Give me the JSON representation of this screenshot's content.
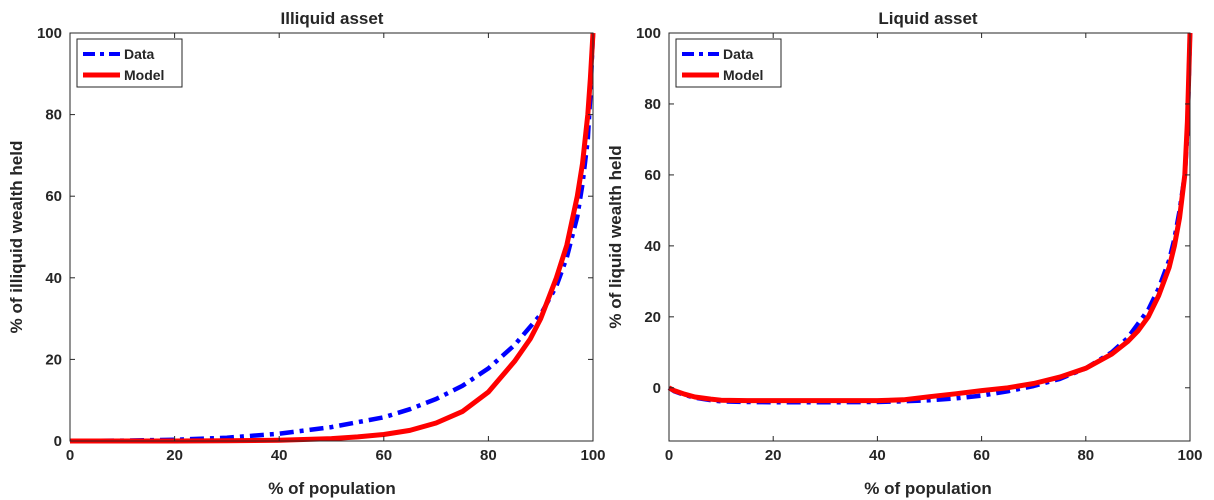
{
  "chart_data": [
    {
      "type": "line",
      "title": "Illiquid asset",
      "xlabel": "% of population",
      "ylabel": "% of illiquid wealth held",
      "xlim": [
        0,
        100
      ],
      "ylim": [
        0,
        100
      ],
      "xticks": [
        "0",
        "20",
        "40",
        "60",
        "80",
        "100"
      ],
      "yticks": [
        "0",
        "20",
        "40",
        "60",
        "80",
        "100"
      ],
      "legend_position": "top-left",
      "series": [
        {
          "name": "Data",
          "color": "#0000ff",
          "style": "dash-dot",
          "x": [
            0,
            10,
            20,
            30,
            40,
            50,
            60,
            65,
            70,
            75,
            80,
            85,
            90,
            93,
            95,
            97,
            98,
            99,
            99.5,
            100
          ],
          "y": [
            0,
            0.1,
            0.3,
            0.8,
            1.8,
            3.4,
            5.8,
            7.8,
            10.3,
            13.5,
            17.8,
            23.5,
            31,
            38,
            45,
            55,
            63,
            74,
            85,
            100
          ]
        },
        {
          "name": "Model",
          "color": "#ff0000",
          "style": "solid",
          "x": [
            0,
            10,
            20,
            30,
            40,
            50,
            55,
            60,
            65,
            70,
            75,
            80,
            85,
            88,
            90,
            93,
            95,
            97,
            98,
            99,
            99.5,
            100
          ],
          "y": [
            0,
            0,
            0,
            0.05,
            0.2,
            0.6,
            1.0,
            1.6,
            2.6,
            4.4,
            7.2,
            12,
            19.5,
            25,
            30,
            40,
            48,
            60,
            68,
            80,
            89,
            100
          ]
        }
      ]
    },
    {
      "type": "line",
      "title": "Liquid asset",
      "xlabel": "% of population",
      "ylabel": "% of liquid wealth held",
      "xlim": [
        0,
        100
      ],
      "ylim": [
        -15,
        100
      ],
      "xticks": [
        "0",
        "20",
        "40",
        "60",
        "80",
        "100"
      ],
      "yticks": [
        "0",
        "20",
        "40",
        "60",
        "80",
        "100"
      ],
      "legend_position": "top-left",
      "series": [
        {
          "name": "Data",
          "color": "#0000ff",
          "style": "dash-dot",
          "x": [
            0,
            1,
            3,
            5,
            8,
            10,
            15,
            20,
            30,
            40,
            45,
            50,
            55,
            60,
            65,
            70,
            75,
            80,
            85,
            88,
            90,
            92,
            94,
            96,
            97,
            98,
            99,
            99.5,
            100
          ],
          "y": [
            0,
            -1,
            -2,
            -2.8,
            -3.5,
            -3.8,
            -4.0,
            -4.1,
            -4.1,
            -4.0,
            -3.8,
            -3.5,
            -3.0,
            -2.2,
            -1.0,
            0.5,
            2.5,
            5.5,
            10,
            14,
            18,
            22,
            28,
            36,
            42,
            50,
            60,
            72,
            100
          ]
        },
        {
          "name": "Model",
          "color": "#ff0000",
          "style": "solid",
          "x": [
            0,
            1,
            3,
            5,
            8,
            10,
            15,
            20,
            30,
            40,
            45,
            50,
            55,
            60,
            65,
            70,
            75,
            80,
            85,
            88,
            90,
            92,
            94,
            96,
            97,
            98,
            99,
            99.5,
            100
          ],
          "y": [
            0,
            -0.8,
            -1.8,
            -2.6,
            -3.2,
            -3.5,
            -3.6,
            -3.6,
            -3.6,
            -3.6,
            -3.4,
            -2.5,
            -1.7,
            -0.8,
            0,
            1.2,
            3,
            5.5,
            9.5,
            13,
            16,
            20,
            26,
            34,
            40,
            48,
            60,
            75,
            100
          ]
        }
      ]
    }
  ]
}
